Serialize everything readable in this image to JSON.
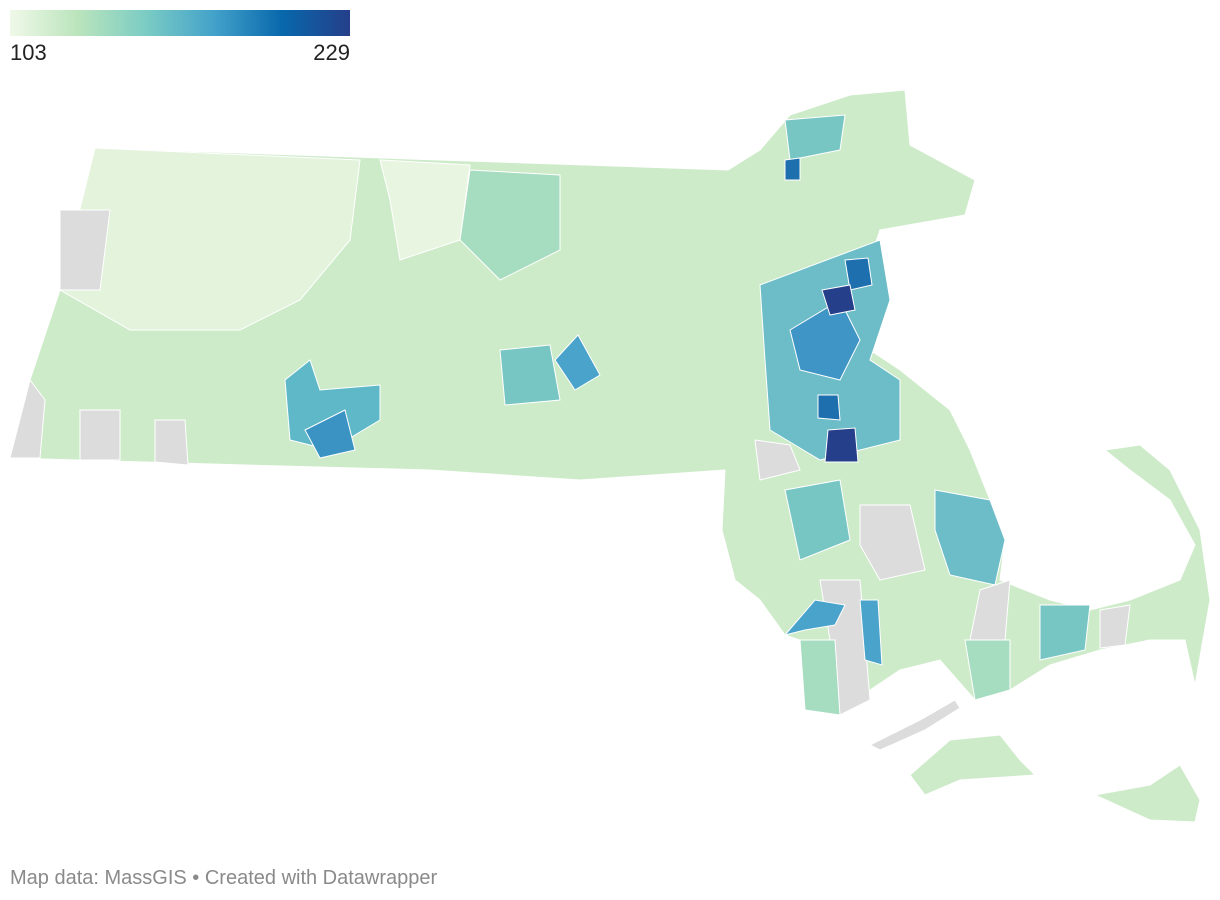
{
  "legend": {
    "min": 103,
    "max": 229,
    "colors": [
      "#f0f9e8",
      "#bae4bc",
      "#7bccc4",
      "#43a2ca",
      "#0868ac",
      "#253f8a"
    ]
  },
  "footer": "Map data: MassGIS • Created with Datawrapper"
}
